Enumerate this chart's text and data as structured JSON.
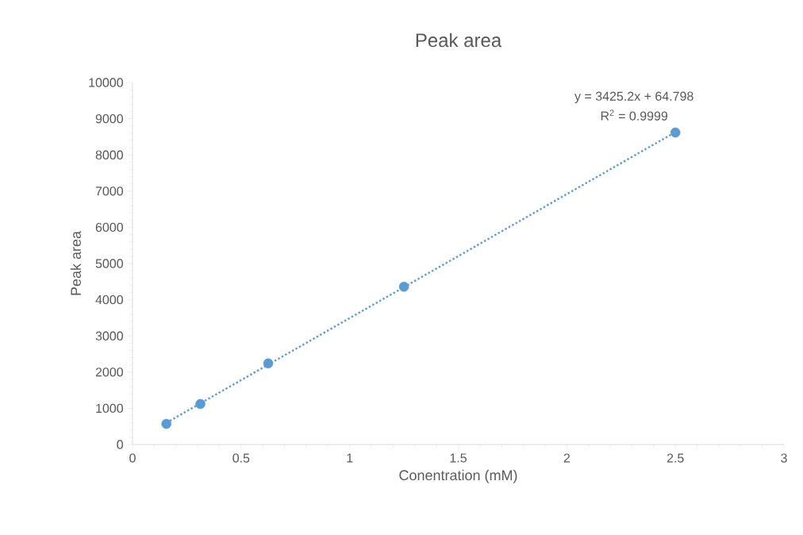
{
  "chart_data": {
    "type": "scatter",
    "title": "Peak area",
    "xlabel": "Conentration (mM)",
    "ylabel": "Peak area",
    "xlim": [
      0,
      3
    ],
    "xticks": [
      0,
      0.5,
      1,
      1.5,
      2,
      2.5,
      3
    ],
    "ylim": [
      0,
      10000
    ],
    "yticks": [
      0,
      1000,
      2000,
      3000,
      4000,
      5000,
      6000,
      7000,
      8000,
      9000,
      10000
    ],
    "series": [
      {
        "color": "#5b9bd5",
        "marker": "circle",
        "x": [
          0.156,
          0.3125,
          0.625,
          1.25,
          2.5
        ],
        "values": [
          570,
          1120,
          2240,
          4360,
          8620
        ]
      },
      {
        "type": "line",
        "color": "#5b9bd5",
        "line_style": "dotted",
        "marker": "none",
        "x": [
          0.156,
          2.5
        ],
        "values": [
          600,
          8630
        ]
      }
    ],
    "annotations": [
      "y = 3425.2x + 64.798",
      "R$^{2}$ = 0.9999"
    ]
  }
}
